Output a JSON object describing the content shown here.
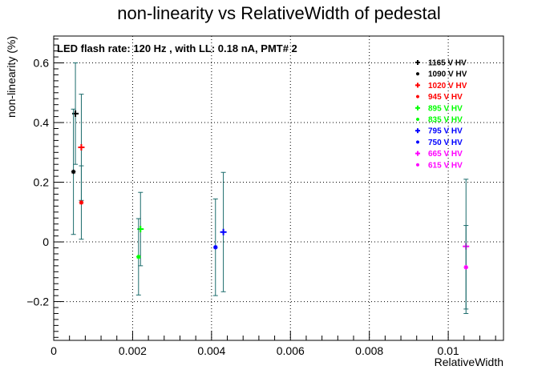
{
  "chart_data": {
    "type": "scatter",
    "title": "non-linearity vs RelativeWidth of pedestal",
    "annotation": "LED flash rate: 120 Hz , with LL: 0.18 nA, PMT# 2",
    "xlabel": "RelativeWidth",
    "ylabel": "non-linearity (%)",
    "xlim": [
      0,
      0.0114
    ],
    "ylim": [
      -0.33,
      0.69
    ],
    "x_ticks": [
      {
        "value": 0,
        "label": "0"
      },
      {
        "value": 0.002,
        "label": "0.002"
      },
      {
        "value": 0.004,
        "label": "0.004"
      },
      {
        "value": 0.006,
        "label": "0.006"
      },
      {
        "value": 0.008,
        "label": "0.008"
      },
      {
        "value": 0.01,
        "label": "0.01"
      }
    ],
    "y_ticks": [
      {
        "value": -0.2,
        "label": "−0.2"
      },
      {
        "value": 0,
        "label": "0"
      },
      {
        "value": 0.2,
        "label": "0.2"
      },
      {
        "value": 0.4,
        "label": "0.4"
      },
      {
        "value": 0.6,
        "label": "0.6"
      }
    ],
    "grid": true,
    "legend_position": "top-right",
    "error_bar_color": "#1a6b6b",
    "series": [
      {
        "name": "1165 V HV",
        "color": "#000000",
        "marker": "plus",
        "x": 0.00055,
        "y": 0.43,
        "yerr": 0.17
      },
      {
        "name": "1090 V HV",
        "color": "#000000",
        "marker": "star",
        "x": 0.0005,
        "y": 0.235,
        "yerr": 0.21
      },
      {
        "name": "1020 V HV",
        "color": "#ff0000",
        "marker": "plus",
        "x": 0.0007,
        "y": 0.317,
        "yerr": 0.178
      },
      {
        "name": "945 V HV",
        "color": "#ff0000",
        "marker": "star",
        "x": 0.0007,
        "y": 0.132,
        "yerr": 0.123
      },
      {
        "name": "895 V HV",
        "color": "#00ff00",
        "marker": "plus",
        "x": 0.0022,
        "y": 0.043,
        "yerr": 0.123
      },
      {
        "name": "835 V HV",
        "color": "#00ff00",
        "marker": "star",
        "x": 0.00215,
        "y": -0.05,
        "yerr": 0.128
      },
      {
        "name": "795 V HV",
        "color": "#0000ff",
        "marker": "plus",
        "x": 0.0043,
        "y": 0.033,
        "yerr": 0.2
      },
      {
        "name": "750 V HV",
        "color": "#0000ff",
        "marker": "star",
        "x": 0.0041,
        "y": -0.018,
        "yerr": 0.162
      },
      {
        "name": "665 V HV",
        "color": "#ff00ff",
        "marker": "plus",
        "x": 0.01045,
        "y": -0.015,
        "yerr": 0.225
      },
      {
        "name": "615 V HV",
        "color": "#ff00ff",
        "marker": "star",
        "x": 0.01045,
        "y": -0.085,
        "yerr": 0.14
      }
    ]
  }
}
